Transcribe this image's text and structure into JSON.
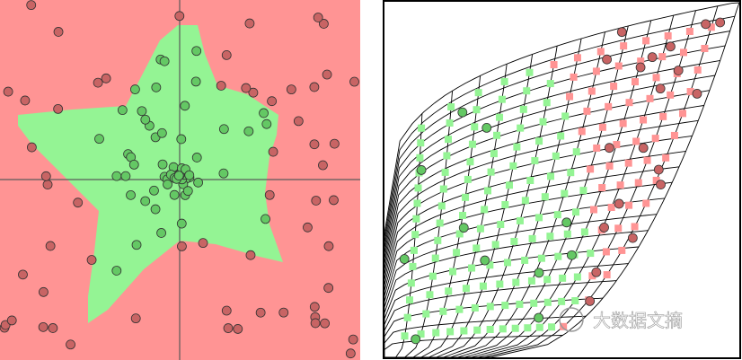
{
  "watermark": {
    "text": "大数据文摘"
  }
}
